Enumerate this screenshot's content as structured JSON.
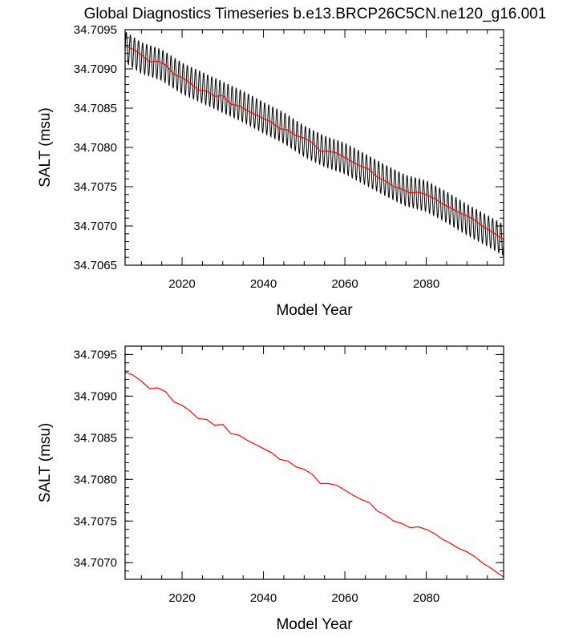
{
  "title": "Global Diagnostics Timeseries b.e13.BRCP26C5CN.ne120_g16.001",
  "colors": {
    "raw": "#000000",
    "smooth": "#ff0000",
    "axes": "#000000"
  },
  "chart_data": [
    {
      "type": "line",
      "xlabel": "Model Year",
      "ylabel": "SALT (msu)",
      "xlim": [
        2006,
        2099
      ],
      "ylim": [
        34.7065,
        34.7095
      ],
      "xticks": [
        "2020",
        "2040",
        "2060",
        "2080"
      ],
      "xtick_values": [
        2020,
        2040,
        2060,
        2080
      ],
      "yticks": [
        "34.7065",
        "34.7070",
        "34.7075",
        "34.7080",
        "34.7085",
        "34.7090",
        "34.7095"
      ],
      "ytick_values": [
        34.7065,
        34.707,
        34.7075,
        34.708,
        34.7085,
        34.709,
        34.7095
      ],
      "series": [
        {
          "kind": "monthly",
          "color": "#000000",
          "seasonal_amplitude": 0.0002,
          "x": [
            2006,
            2010,
            2015,
            2020,
            2025,
            2030,
            2035,
            2040,
            2045,
            2050,
            2055,
            2060,
            2065,
            2070,
            2075,
            2080,
            2085,
            2090,
            2095,
            2099
          ],
          "y": [
            34.70928,
            34.70914,
            34.70905,
            34.70888,
            34.70876,
            34.70864,
            34.70852,
            34.70838,
            34.70825,
            34.70808,
            34.70795,
            34.70786,
            34.70772,
            34.70758,
            34.70745,
            34.70738,
            34.70724,
            34.70708,
            34.70694,
            34.70682
          ]
        },
        {
          "kind": "annual",
          "color": "#ff0000",
          "x": [
            2006,
            2008,
            2010,
            2012,
            2014,
            2016,
            2018,
            2020,
            2022,
            2024,
            2026,
            2028,
            2030,
            2032,
            2034,
            2036,
            2038,
            2040,
            2042,
            2044,
            2046,
            2048,
            2050,
            2052,
            2054,
            2056,
            2058,
            2060,
            2062,
            2064,
            2066,
            2068,
            2070,
            2072,
            2074,
            2076,
            2078,
            2080,
            2082,
            2084,
            2086,
            2088,
            2090,
            2092,
            2094,
            2096,
            2098,
            2099
          ],
          "y": [
            34.70929,
            34.70925,
            34.70918,
            34.70909,
            34.7091,
            34.70905,
            34.70893,
            34.70889,
            34.70882,
            34.70873,
            34.70872,
            34.70865,
            34.70866,
            34.70855,
            34.70853,
            34.70847,
            34.70842,
            34.70837,
            34.70832,
            34.70824,
            34.70822,
            34.70815,
            34.70812,
            34.70806,
            34.70795,
            34.70795,
            34.70793,
            34.70787,
            34.70781,
            34.70776,
            34.70772,
            34.70762,
            34.70757,
            34.7075,
            34.70747,
            34.70742,
            34.70743,
            34.7074,
            34.70735,
            34.70728,
            34.70723,
            34.70717,
            34.70713,
            34.70707,
            34.70699,
            34.70693,
            34.70686,
            34.70683
          ]
        }
      ]
    },
    {
      "type": "line",
      "xlabel": "Model Year",
      "ylabel": "SALT (msu)",
      "xlim": [
        2006,
        2099
      ],
      "ylim": [
        34.7068,
        34.7096
      ],
      "xticks": [
        "2020",
        "2040",
        "2060",
        "2080"
      ],
      "xtick_values": [
        2020,
        2040,
        2060,
        2080
      ],
      "yticks": [
        "34.7070",
        "34.7075",
        "34.7080",
        "34.7085",
        "34.7090",
        "34.7095"
      ],
      "ytick_values": [
        34.707,
        34.7075,
        34.708,
        34.7085,
        34.709,
        34.7095
      ],
      "series": [
        {
          "kind": "annual",
          "color": "#ff0000",
          "x": [
            2006,
            2008,
            2010,
            2012,
            2014,
            2016,
            2018,
            2020,
            2022,
            2024,
            2026,
            2028,
            2030,
            2032,
            2034,
            2036,
            2038,
            2040,
            2042,
            2044,
            2046,
            2048,
            2050,
            2052,
            2054,
            2056,
            2058,
            2060,
            2062,
            2064,
            2066,
            2068,
            2070,
            2072,
            2074,
            2076,
            2078,
            2080,
            2082,
            2084,
            2086,
            2088,
            2090,
            2092,
            2094,
            2096,
            2098,
            2099
          ],
          "y": [
            34.70929,
            34.70925,
            34.70918,
            34.70909,
            34.7091,
            34.70905,
            34.70893,
            34.70889,
            34.70882,
            34.70873,
            34.70872,
            34.70865,
            34.70866,
            34.70855,
            34.70853,
            34.70847,
            34.70842,
            34.70837,
            34.70832,
            34.70824,
            34.70822,
            34.70815,
            34.70812,
            34.70806,
            34.70795,
            34.70795,
            34.70793,
            34.70787,
            34.70781,
            34.70776,
            34.70772,
            34.70762,
            34.70757,
            34.7075,
            34.70747,
            34.70742,
            34.70743,
            34.7074,
            34.70735,
            34.70728,
            34.70723,
            34.70717,
            34.70713,
            34.70707,
            34.70699,
            34.70693,
            34.70686,
            34.70683
          ]
        }
      ]
    }
  ]
}
